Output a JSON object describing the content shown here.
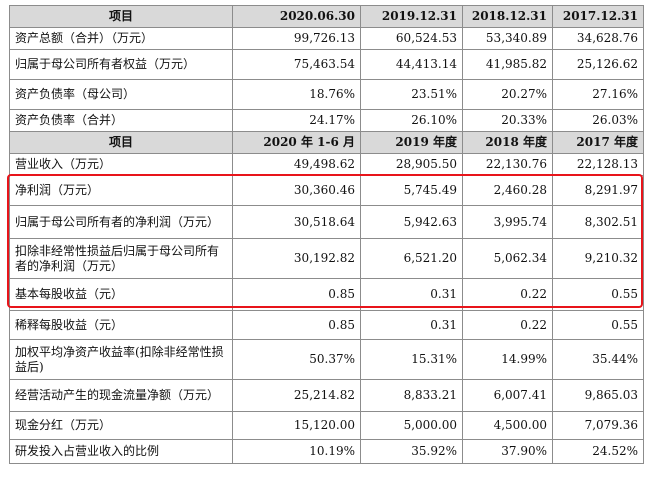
{
  "table": {
    "header1": [
      "项目",
      "2020.06.30",
      "2019.12.31",
      "2018.12.31",
      "2017.12.31"
    ],
    "section1": [
      [
        "资产总额（合并）（万元）",
        "99,726.13",
        "60,524.53",
        "53,340.89",
        "34,628.76"
      ],
      [
        "归属于母公司所有者权益（万元）",
        "75,463.54",
        "44,413.14",
        "41,985.82",
        "25,126.62"
      ],
      [
        "资产负债率（母公司）",
        "18.76%",
        "23.51%",
        "20.27%",
        "27.16%"
      ],
      [
        "资产负债率（合并）",
        "24.17%",
        "26.10%",
        "20.33%",
        "26.03%"
      ]
    ],
    "header2": [
      "项目",
      "2020 年 1-6 月",
      "2019 年度",
      "2018 年度",
      "2017 年度"
    ],
    "section2": [
      [
        "营业收入（万元）",
        "49,498.62",
        "28,905.50",
        "22,130.76",
        "22,128.13"
      ],
      [
        "净利润（万元）",
        "30,360.46",
        "5,745.49",
        "2,460.28",
        "8,291.97"
      ],
      [
        "归属于母公司所有者的净利润（万元）",
        "30,518.64",
        "5,942.63",
        "3,995.74",
        "8,302.51"
      ],
      [
        "扣除非经常性损益后归属于母公司所有者的净利润（万元）",
        "30,192.82",
        "6,521.20",
        "5,062.34",
        "9,210.32"
      ],
      [
        "基本每股收益（元）",
        "0.85",
        "0.31",
        "0.22",
        "0.55"
      ],
      [
        "稀释每股收益（元）",
        "0.85",
        "0.31",
        "0.22",
        "0.55"
      ],
      [
        "加权平均净资产收益率(扣除非经常性损益后)",
        "50.37%",
        "15.31%",
        "14.99%",
        "35.44%"
      ],
      [
        "经营活动产生的现金流量净额（万元）",
        "25,214.82",
        "8,833.21",
        "6,007.41",
        "9,865.03"
      ],
      [
        "现金分红（万元）",
        "15,120.00",
        "5,000.00",
        "4,500.00",
        "7,079.36"
      ],
      [
        "研发投入占营业收入的比例",
        "10.19%",
        "35.92%",
        "37.90%",
        "24.52%"
      ]
    ]
  },
  "highlight": {
    "color": "#e8141a"
  }
}
